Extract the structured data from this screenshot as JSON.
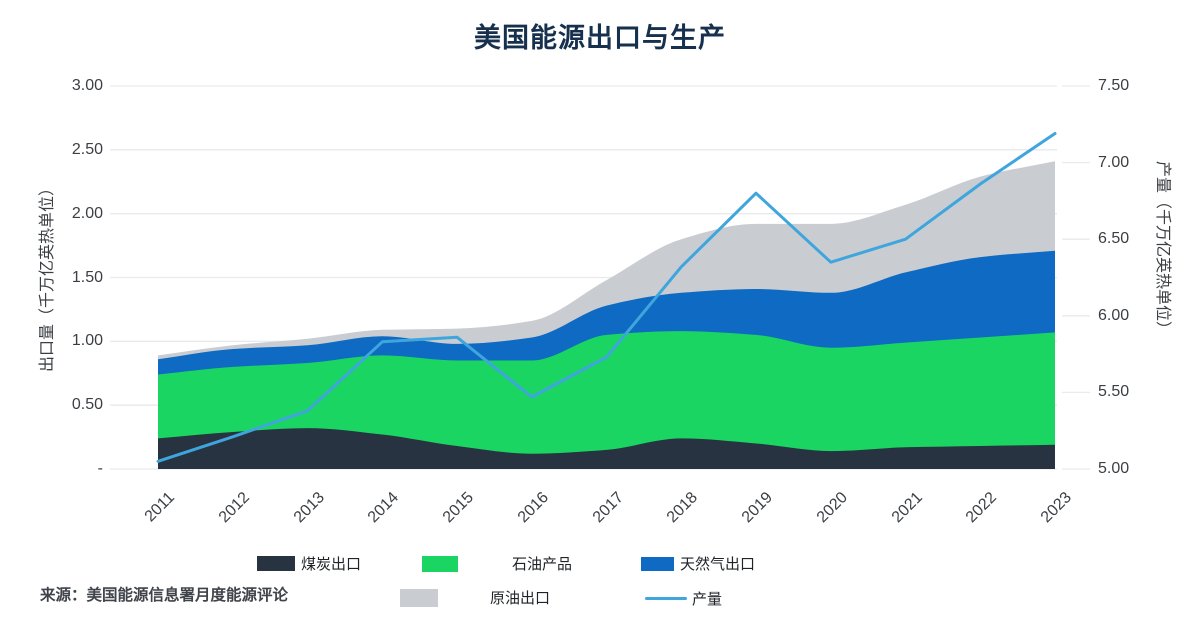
{
  "title": "美国能源出口与生产",
  "source": "来源：美国能源信息署月度能源评论",
  "colors": {
    "coal": "#273340",
    "petroleum": "#1bd563",
    "gas": "#0e6ac2",
    "crude": "#c9cdd2",
    "production_line": "#3fa5dd",
    "title_text": "#16304d",
    "grid": "#e8eaed",
    "axis_text": "#3b3f44"
  },
  "legend": {
    "row1": [
      {
        "label": "煤炭出口",
        "series": "coal"
      },
      {
        "label": "石油产品",
        "series": "petroleum"
      },
      {
        "label": "天然气出口",
        "series": "gas"
      }
    ],
    "row2": [
      {
        "label": "原油出口",
        "series": "crude"
      },
      {
        "label": "产量",
        "series": "production"
      }
    ]
  },
  "chart_data": {
    "type": "area",
    "title": "美国能源出口与生产",
    "x": [
      2011,
      2012,
      2013,
      2014,
      2015,
      2016,
      2017,
      2018,
      2019,
      2020,
      2021,
      2022,
      2023
    ],
    "stacked_series": [
      {
        "name": "煤炭出口",
        "color_key": "coal",
        "values": [
          0.24,
          0.29,
          0.32,
          0.27,
          0.18,
          0.12,
          0.15,
          0.24,
          0.2,
          0.14,
          0.17,
          0.18,
          0.19
        ]
      },
      {
        "name": "石油产品",
        "color_key": "petroleum",
        "values": [
          0.5,
          0.51,
          0.51,
          0.62,
          0.67,
          0.73,
          0.9,
          0.84,
          0.85,
          0.81,
          0.82,
          0.85,
          0.88
        ]
      },
      {
        "name": "天然气出口",
        "color_key": "gas",
        "values": [
          0.12,
          0.14,
          0.14,
          0.15,
          0.13,
          0.18,
          0.23,
          0.3,
          0.36,
          0.43,
          0.55,
          0.63,
          0.64
        ]
      },
      {
        "name": "原油出口",
        "color_key": "crude",
        "values": [
          0.03,
          0.03,
          0.05,
          0.05,
          0.12,
          0.13,
          0.2,
          0.42,
          0.51,
          0.54,
          0.53,
          0.63,
          0.7
        ]
      }
    ],
    "line_series": {
      "name": "产量",
      "axis": "right",
      "color_key": "production_line",
      "values": [
        5.05,
        5.21,
        5.38,
        5.83,
        5.86,
        5.47,
        5.73,
        6.32,
        6.8,
        6.35,
        6.5,
        6.86,
        7.19
      ]
    },
    "left_axis": {
      "label": "出口量（千万亿英热单位）",
      "range": [
        0,
        3.0
      ],
      "ticks": [
        "3.00",
        "2.50",
        "2.00",
        "1.50",
        "1.00",
        "0.50",
        "-"
      ],
      "tick_values": [
        3.0,
        2.5,
        2.0,
        1.5,
        1.0,
        0.5,
        0
      ]
    },
    "right_axis": {
      "label": "产量（千万亿英热单位）",
      "range": [
        5.0,
        7.5
      ],
      "ticks": [
        "7.50",
        "7.00",
        "6.50",
        "6.00",
        "5.50",
        "5.00"
      ],
      "tick_values": [
        7.5,
        7.0,
        6.5,
        6.0,
        5.5,
        5.0
      ]
    },
    "grid": true,
    "legend_position": "bottom"
  }
}
